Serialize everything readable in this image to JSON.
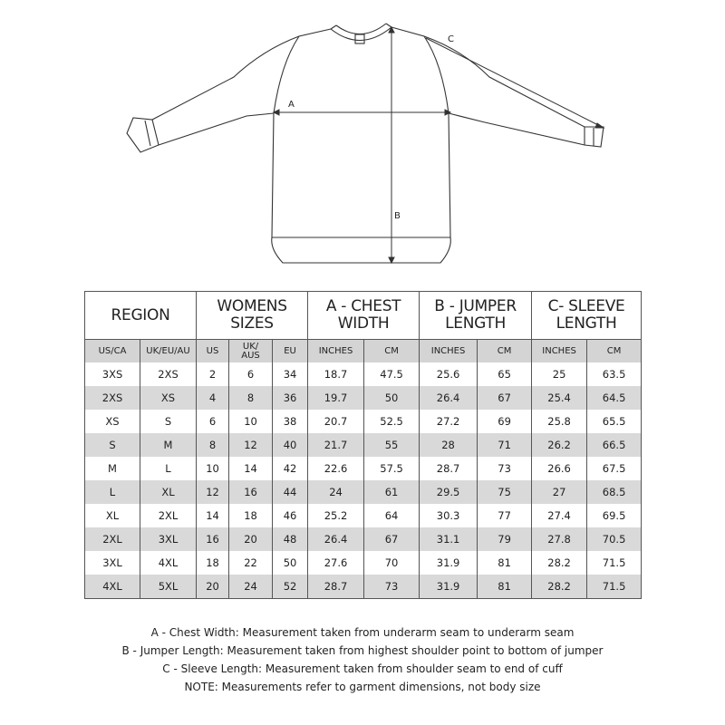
{
  "diagram": {
    "label_a": "A",
    "label_b": "B",
    "label_c": "C"
  },
  "table": {
    "headers": [
      {
        "line1": "REGION",
        "line2": ""
      },
      {
        "line1": "WOMENS",
        "line2": "SIZES"
      },
      {
        "line1": "A - CHEST",
        "line2": "WIDTH"
      },
      {
        "line1": "B - JUMPER",
        "line2": "LENGTH"
      },
      {
        "line1": "C- SLEEVE",
        "line2": "LENGTH"
      }
    ],
    "subheaders": [
      "US/CA",
      "UK/EU/AU",
      "US",
      "UK/\nAUS",
      "EU",
      "INCHES",
      "CM",
      "INCHES",
      "CM",
      "INCHES",
      "CM"
    ],
    "rows": [
      [
        "3XS",
        "2XS",
        "2",
        "6",
        "34",
        "18.7",
        "47.5",
        "25.6",
        "65",
        "25",
        "63.5"
      ],
      [
        "2XS",
        "XS",
        "4",
        "8",
        "36",
        "19.7",
        "50",
        "26.4",
        "67",
        "25.4",
        "64.5"
      ],
      [
        "XS",
        "S",
        "6",
        "10",
        "38",
        "20.7",
        "52.5",
        "27.2",
        "69",
        "25.8",
        "65.5"
      ],
      [
        "S",
        "M",
        "8",
        "12",
        "40",
        "21.7",
        "55",
        "28",
        "71",
        "26.2",
        "66.5"
      ],
      [
        "M",
        "L",
        "10",
        "14",
        "42",
        "22.6",
        "57.5",
        "28.7",
        "73",
        "26.6",
        "67.5"
      ],
      [
        "L",
        "XL",
        "12",
        "16",
        "44",
        "24",
        "61",
        "29.5",
        "75",
        "27",
        "68.5"
      ],
      [
        "XL",
        "2XL",
        "14",
        "18",
        "46",
        "25.2",
        "64",
        "30.3",
        "77",
        "27.4",
        "69.5"
      ],
      [
        "2XL",
        "3XL",
        "16",
        "20",
        "48",
        "26.4",
        "67",
        "31.1",
        "79",
        "27.8",
        "70.5"
      ],
      [
        "3XL",
        "4XL",
        "18",
        "22",
        "50",
        "27.6",
        "70",
        "31.9",
        "81",
        "28.2",
        "71.5"
      ],
      [
        "4XL",
        "5XL",
        "20",
        "24",
        "52",
        "28.7",
        "73",
        "31.9",
        "81",
        "28.2",
        "71.5"
      ]
    ]
  },
  "notes": [
    "A - Chest Width: Measurement taken from underarm seam to underarm seam",
    "B - Jumper Length: Measurement taken from highest shoulder point to bottom of jumper",
    "C - Sleeve Length: Measurement taken from shoulder seam to end of cuff",
    "NOTE: Measurements refer to garment dimensions, not body size"
  ]
}
